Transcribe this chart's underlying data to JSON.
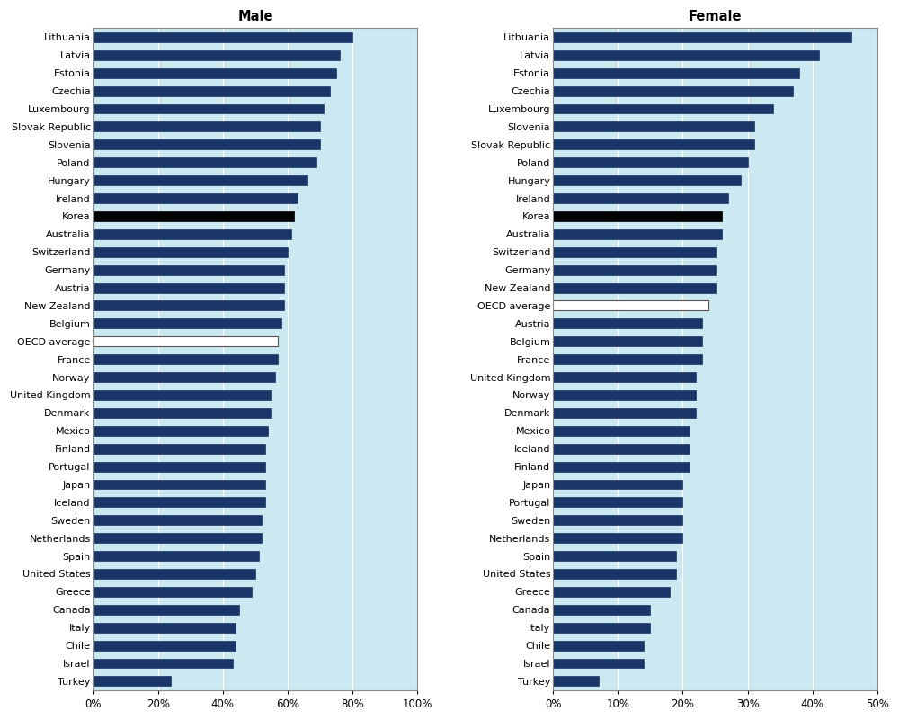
{
  "male_countries": [
    "Lithuania",
    "Latvia",
    "Estonia",
    "Czechia",
    "Luxembourg",
    "Slovak Republic",
    "Slovenia",
    "Poland",
    "Hungary",
    "Ireland",
    "Korea",
    "Australia",
    "Switzerland",
    "Germany",
    "Austria",
    "New Zealand",
    "Belgium",
    "OECD average",
    "France",
    "Norway",
    "United Kingdom",
    "Denmark",
    "Mexico",
    "Finland",
    "Portugal",
    "Japan",
    "Iceland",
    "Sweden",
    "Netherlands",
    "Spain",
    "United States",
    "Greece",
    "Canada",
    "Italy",
    "Chile",
    "Israel",
    "Turkey"
  ],
  "male_values": [
    80,
    76,
    75,
    73,
    71,
    70,
    70,
    69,
    66,
    63,
    62,
    61,
    60,
    59,
    59,
    59,
    58,
    57,
    57,
    56,
    55,
    55,
    54,
    53,
    53,
    53,
    53,
    52,
    52,
    51,
    50,
    49,
    45,
    44,
    44,
    43,
    24
  ],
  "female_countries": [
    "Lithuania",
    "Latvia",
    "Estonia",
    "Czechia",
    "Luxembourg",
    "Slovenia",
    "Slovak Republic",
    "Poland",
    "Hungary",
    "Ireland",
    "Korea",
    "Australia",
    "Switzerland",
    "Germany",
    "New Zealand",
    "OECD average",
    "Austria",
    "Belgium",
    "France",
    "United Kingdom",
    "Norway",
    "Denmark",
    "Mexico",
    "Iceland",
    "Finland",
    "Japan",
    "Portugal",
    "Sweden",
    "Netherlands",
    "Spain",
    "United States",
    "Greece",
    "Canada",
    "Italy",
    "Chile",
    "Israel",
    "Turkey"
  ],
  "female_values": [
    46,
    41,
    38,
    37,
    34,
    31,
    31,
    30,
    29,
    27,
    26,
    26,
    25,
    25,
    25,
    24,
    23,
    23,
    23,
    22,
    22,
    22,
    21,
    21,
    21,
    20,
    20,
    20,
    20,
    19,
    19,
    18,
    15,
    15,
    14,
    14,
    7
  ],
  "bar_color": "#1a3668",
  "oecd_color": "#ffffff",
  "korea_color": "#000000",
  "bg_color": "#cce8f0",
  "male_xlim": [
    0,
    100
  ],
  "female_xlim": [
    0,
    50
  ],
  "male_xticks": [
    0,
    20,
    40,
    60,
    80,
    100
  ],
  "female_xticks": [
    0,
    10,
    20,
    30,
    40,
    50
  ],
  "male_title": "Male",
  "female_title": "Female",
  "label_fontsize": 8.0,
  "tick_fontsize": 8.5,
  "title_fontsize": 10.5,
  "bar_height": 0.55
}
